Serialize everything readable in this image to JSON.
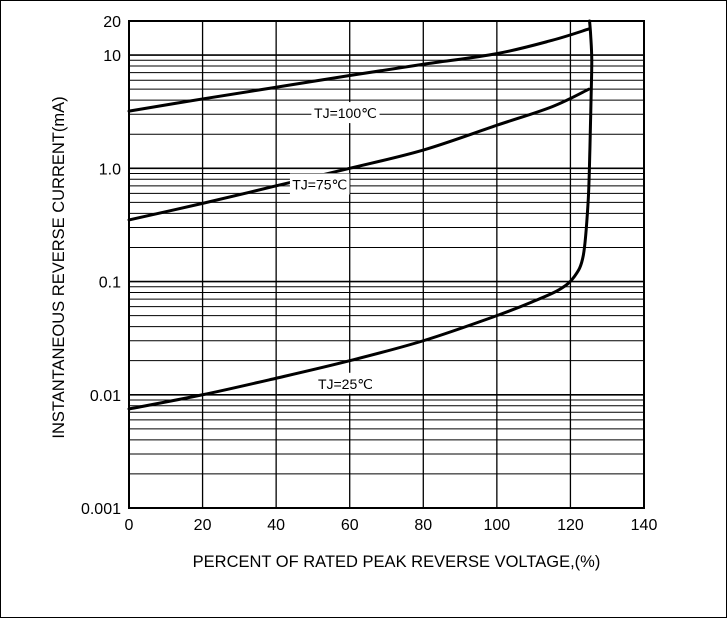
{
  "chart_data": {
    "type": "line",
    "title": "",
    "xlabel": "PERCENT OF RATED PEAK REVERSE VOLTAGE,(%)",
    "ylabel": "INSTANTANEOUS REVERSE CURRENT(mA)",
    "xlim": [
      0,
      140
    ],
    "ylim": [
      0.001,
      20
    ],
    "y_scale": "log",
    "grid": true,
    "x_ticks": [
      0,
      20,
      40,
      60,
      80,
      100,
      120,
      140
    ],
    "x_tick_labels": [
      "0",
      "20",
      "40",
      "60",
      "80",
      "100",
      "120",
      "140"
    ],
    "y_ticks": [
      0.001,
      0.01,
      0.1,
      1,
      10,
      20
    ],
    "y_tick_labels": [
      "0.001",
      "0.01",
      "0.1",
      "1.0",
      "10",
      "20"
    ],
    "legend": "none",
    "series": [
      {
        "name": "TJ=100℃",
        "x": [
          0,
          20,
          40,
          60,
          80,
          100,
          115,
          125
        ],
        "y": [
          3.2,
          4.1,
          5.2,
          6.6,
          8.3,
          10.3,
          13.5,
          17
        ]
      },
      {
        "name": "TJ=75℃",
        "x": [
          0,
          20,
          40,
          60,
          80,
          100,
          115,
          125
        ],
        "y": [
          0.35,
          0.49,
          0.7,
          1.0,
          1.45,
          2.4,
          3.5,
          5.0
        ]
      },
      {
        "name": "TJ=25℃",
        "x": [
          0,
          20,
          40,
          60,
          80,
          100,
          110,
          117,
          121,
          123.5,
          124.8,
          125.3,
          125.6,
          125.8,
          125.5,
          125.2
        ],
        "y": [
          0.0075,
          0.01,
          0.014,
          0.02,
          0.03,
          0.05,
          0.067,
          0.085,
          0.11,
          0.17,
          0.5,
          1.5,
          4,
          9,
          15,
          20
        ]
      }
    ]
  }
}
